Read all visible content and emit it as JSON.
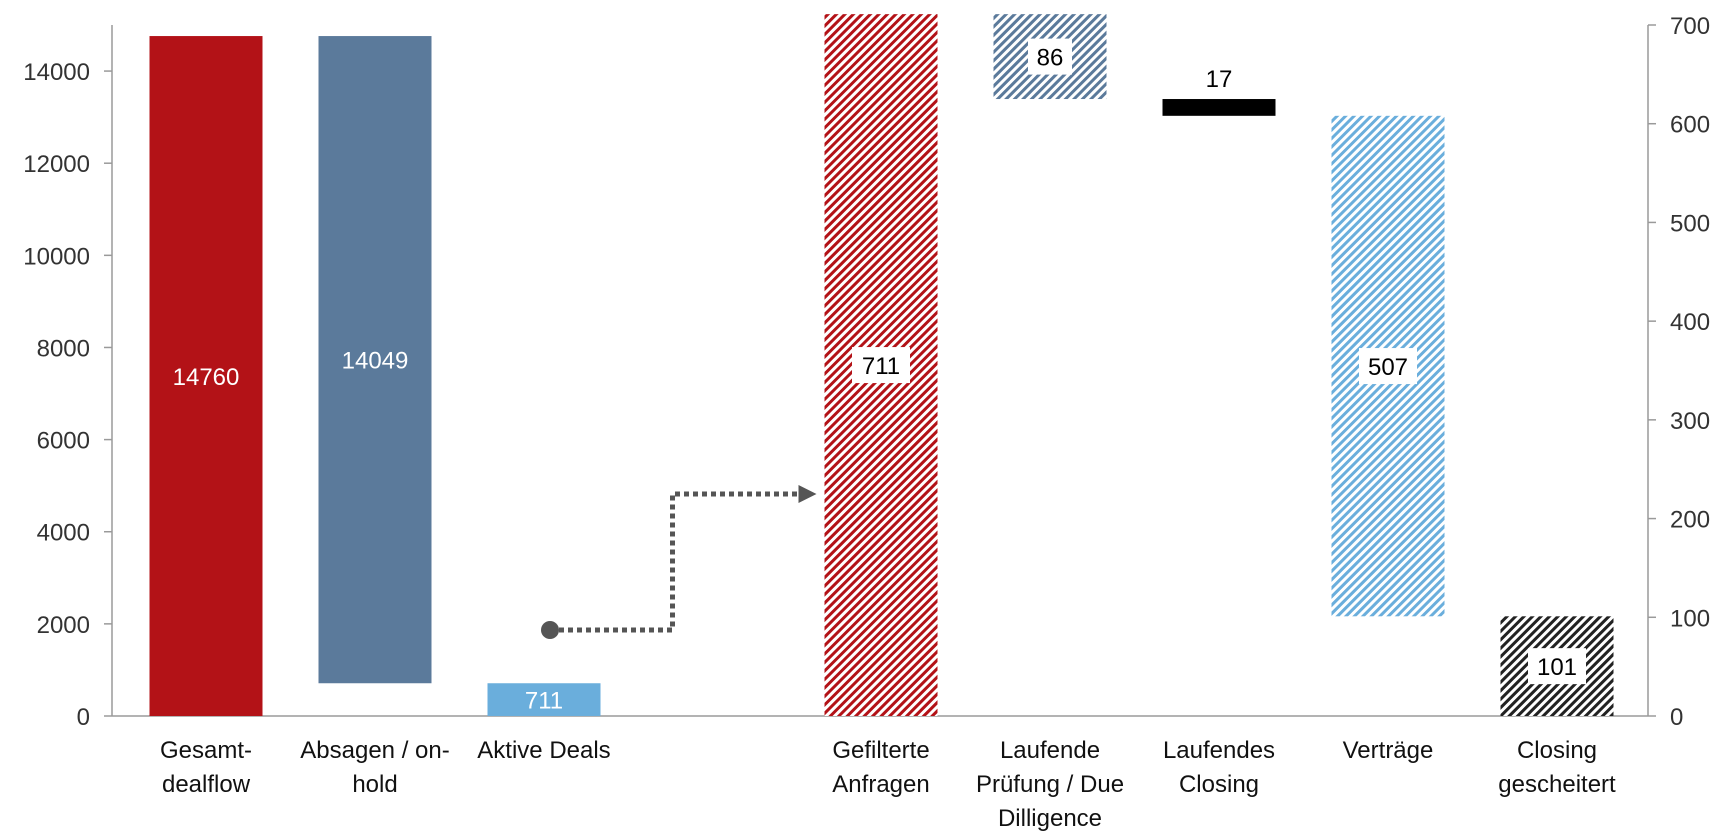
{
  "chart_data": {
    "type": "bar",
    "title": "",
    "left_axis": {
      "ylim": [
        0,
        15000
      ],
      "ticks": [
        "0",
        "2000",
        "4000",
        "6000",
        "8000",
        "10000",
        "12000",
        "14000"
      ]
    },
    "right_axis": {
      "ylim": [
        0,
        700
      ],
      "ticks": [
        "0",
        "100",
        "200",
        "300",
        "400",
        "500",
        "600",
        "700"
      ]
    },
    "bars": [
      {
        "category": "Gesamt- dealflow",
        "label_lines": [
          "Gesamt-",
          "dealflow"
        ],
        "axis": "left",
        "base": 0,
        "top": 14760,
        "value_label": "14760",
        "color": "#B31217",
        "pattern": "solid",
        "label_style": "inside-light"
      },
      {
        "category": "Absagen / on- hold",
        "label_lines": [
          "Absagen / on-",
          "hold"
        ],
        "axis": "left",
        "base": 711,
        "top": 14760,
        "value_label": "14049",
        "color": "#5B7A9B",
        "pattern": "solid",
        "label_style": "inside-light"
      },
      {
        "category": "Aktive Deals",
        "label_lines": [
          "Aktive Deals"
        ],
        "axis": "left",
        "base": 0,
        "top": 711,
        "value_label": "711",
        "color": "#6AAEDC",
        "pattern": "solid",
        "label_style": "inside-light"
      },
      {
        "category": "Gefilterte Anfragen",
        "label_lines": [
          "Gefilterte",
          "Anfragen"
        ],
        "axis": "right",
        "base": 0,
        "top": 711,
        "value_label": "711",
        "color": "#B31217",
        "pattern": "hatch",
        "label_style": "boxed"
      },
      {
        "category": "Laufende Prüfung / Due Dilligence",
        "label_lines": [
          "Laufende",
          "Prüfung / Due",
          "Dilligence"
        ],
        "axis": "right",
        "base": 625,
        "top": 711,
        "value_label": "86",
        "color": "#5B7A9B",
        "pattern": "hatch",
        "label_style": "boxed"
      },
      {
        "category": "Laufendes Closing",
        "label_lines": [
          "Laufendes",
          "Closing"
        ],
        "axis": "right",
        "base": 608,
        "top": 625,
        "value_label": "17",
        "color": "#000000",
        "pattern": "solid",
        "label_style": "above"
      },
      {
        "category": "Verträge",
        "label_lines": [
          "Verträge"
        ],
        "axis": "right",
        "base": 101,
        "top": 608,
        "value_label": "507",
        "color": "#6AAEDC",
        "pattern": "hatch",
        "label_style": "boxed"
      },
      {
        "category": "Closing gescheitert",
        "label_lines": [
          "Closing",
          "gescheitert"
        ],
        "axis": "right",
        "base": 0,
        "top": 101,
        "value_label": "101",
        "color": "#222222",
        "pattern": "hatch",
        "label_style": "boxed"
      }
    ],
    "connector": {
      "style": "dotted-arrow",
      "from": "Aktive Deals",
      "to": "Gefilterte Anfragen",
      "color": "#555555"
    }
  }
}
